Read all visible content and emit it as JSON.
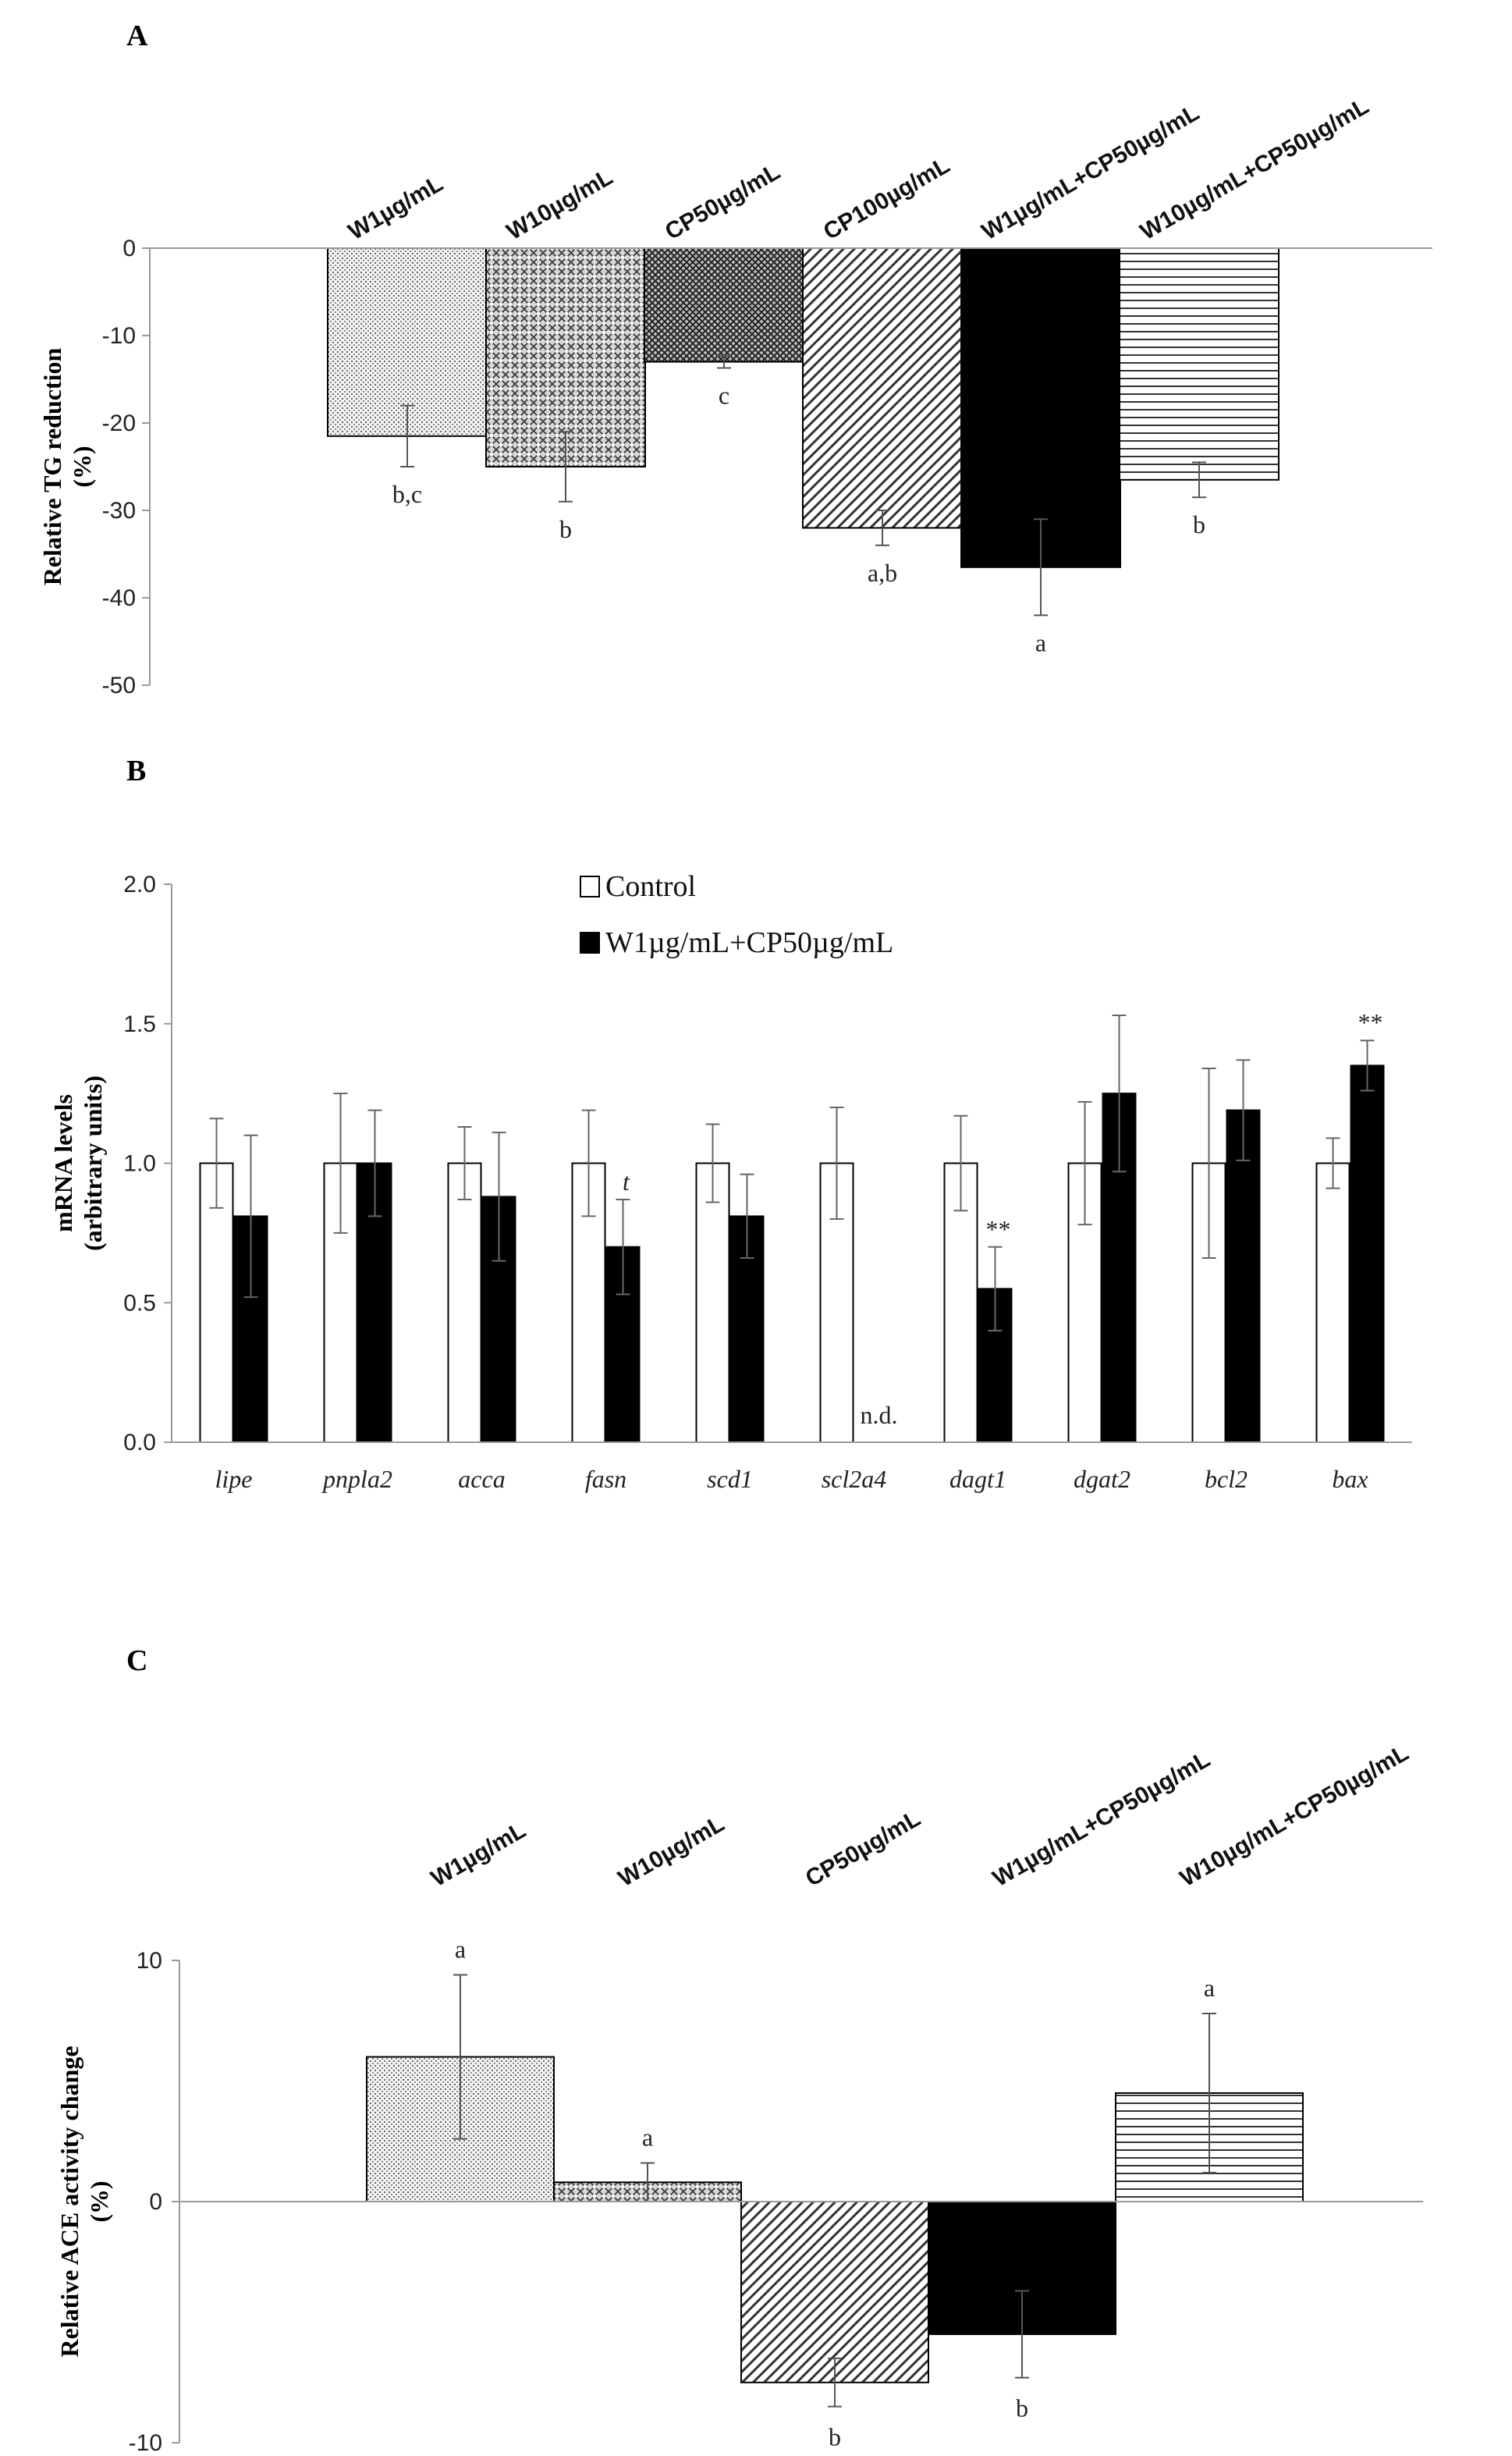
{
  "chart_data": [
    {
      "panel": "A",
      "type": "bar",
      "ylabel": "Relative TG reduction",
      "ylabel_unit": "(%)",
      "ylim": [
        -50,
        0
      ],
      "yticks": [
        0,
        -10,
        -20,
        -30,
        -40,
        -50
      ],
      "categories": [
        "W1µg/mL",
        "W10µg/mL",
        "CP50µg/mL",
        "CP100µg/mL",
        "W1µg/mL+CP50µg/mL",
        "W10µg/mL+CP50µg/mL"
      ],
      "values": [
        -21.5,
        -25,
        -13,
        -32,
        -36.5,
        -26.5
      ],
      "errors": [
        3.5,
        4,
        0.7,
        2,
        5.5,
        2
      ],
      "labels": [
        "b,c",
        "b",
        "c",
        "a,b",
        "a",
        "b"
      ],
      "patterns": [
        "dots",
        "crosshatch",
        "diagcross",
        "diag",
        "solid",
        "hlines"
      ]
    },
    {
      "panel": "B",
      "type": "bar",
      "ylabel": "mRNA levels",
      "ylabel_unit": "(arbitrary  units)",
      "ylim": [
        0,
        2
      ],
      "yticks": [
        "0.0",
        "0.5",
        "1.0",
        "1.5",
        "2.0"
      ],
      "categories": [
        "lipe",
        "pnpla2",
        "acca",
        "fasn",
        "scd1",
        "scl2a4",
        "dagt1",
        "dgat2",
        "bcl2",
        "bax"
      ],
      "series": [
        {
          "name": "Control",
          "values": [
            1,
            1,
            1,
            1,
            1,
            1,
            1,
            1,
            1,
            1
          ],
          "errors": [
            0.16,
            0.25,
            0.13,
            0.19,
            0.14,
            0.2,
            0.17,
            0.22,
            0.34,
            0.09
          ]
        },
        {
          "name": "W1µg/mL+CP50µg/mL",
          "values": [
            0.81,
            1.0,
            0.88,
            0.7,
            0.81,
            0,
            0.55,
            1.25,
            1.19,
            1.35
          ],
          "errors": [
            0.29,
            0.19,
            0.23,
            0.17,
            0.15,
            0,
            0.15,
            0.28,
            0.18,
            0.09
          ]
        }
      ],
      "annotations": [
        {
          "category": "fasn",
          "text": "t"
        },
        {
          "category": "scl2a4",
          "text": "n.d."
        },
        {
          "category": "dagt1",
          "text": "**"
        },
        {
          "category": "bax",
          "text": "**"
        }
      ]
    },
    {
      "panel": "C",
      "type": "bar",
      "ylabel": "Relative ACE activity change",
      "ylabel_unit": "(%)",
      "ylim": [
        -10,
        10
      ],
      "yticks": [
        10,
        0,
        -10
      ],
      "categories": [
        "W1µg/mL",
        "W10µg/mL",
        "CP50µg/mL",
        "W1µg/mL+CP50µg/mL",
        "W10µg/mL+CP50µg/mL"
      ],
      "values": [
        6,
        0.8,
        -7.5,
        -5.5,
        4.5
      ],
      "errors": [
        3.4,
        0.8,
        1,
        1.8,
        3.3
      ],
      "labels": [
        "a",
        "a",
        "b",
        "b",
        "a"
      ],
      "patterns": [
        "dots",
        "crosshatch",
        "diag",
        "solid",
        "hlines"
      ]
    }
  ]
}
